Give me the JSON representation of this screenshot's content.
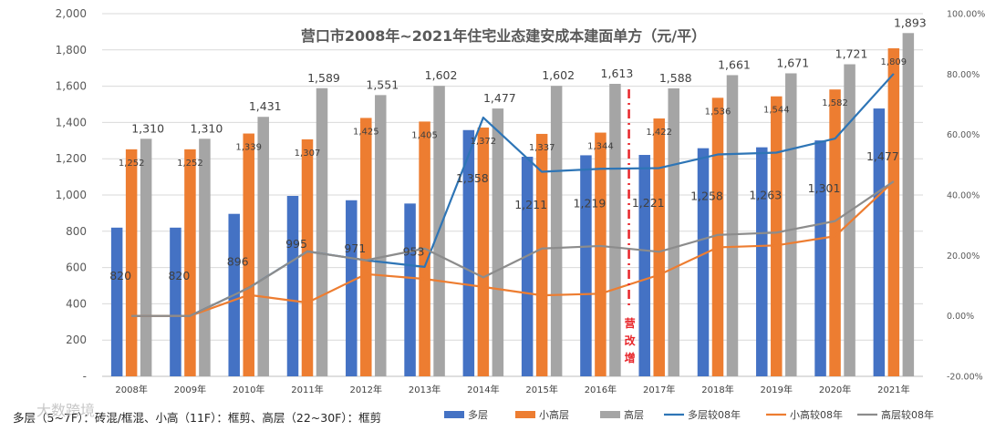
{
  "chart_data": {
    "type": "bar",
    "title": "营口市2008年~2021年住宅业态建安成本建面单方（元/平）",
    "categories": [
      "2008年",
      "2009年",
      "2010年",
      "2011年",
      "2012年",
      "2013年",
      "2014年",
      "2015年",
      "2016年",
      "2017年",
      "2018年",
      "2019年",
      "2020年",
      "2021年"
    ],
    "series": [
      {
        "name": "多层",
        "kind": "bar",
        "axis": "left",
        "color": "#4472C4",
        "values": [
          820,
          820,
          896,
          995,
          971,
          953,
          1358,
          1211,
          1219,
          1221,
          1258,
          1263,
          1301,
          1477
        ]
      },
      {
        "name": "小高层",
        "kind": "bar",
        "axis": "left",
        "color": "#ED7D31",
        "values": [
          1252,
          1252,
          1339,
          1307,
          1425,
          1405,
          1372,
          1337,
          1344,
          1422,
          1536,
          1544,
          1582,
          1809
        ]
      },
      {
        "name": "高层",
        "kind": "bar",
        "axis": "left",
        "color": "#A5A5A5",
        "values": [
          1310,
          1310,
          1431,
          1589,
          1551,
          1602,
          1477,
          1602,
          1613,
          1588,
          1661,
          1671,
          1721,
          1893
        ]
      },
      {
        "name": "多层较08年",
        "kind": "line",
        "axis": "right",
        "color": "#2E75B6",
        "values": [
          0,
          0,
          9.27,
          21.34,
          18.41,
          16.22,
          65.61,
          47.68,
          48.66,
          48.9,
          53.41,
          54.02,
          58.66,
          80.12
        ]
      },
      {
        "name": "小高较08年",
        "kind": "line",
        "axis": "right",
        "color": "#ED7D31",
        "values": [
          0,
          0,
          6.95,
          4.39,
          13.82,
          12.22,
          9.58,
          6.79,
          7.35,
          13.58,
          22.68,
          23.32,
          26.36,
          44.49
        ]
      },
      {
        "name": "高层较08年",
        "kind": "line",
        "axis": "right",
        "color": "#8C8C8C",
        "values": [
          0,
          0,
          9.24,
          21.3,
          18.4,
          22.29,
          12.75,
          22.29,
          23.13,
          21.22,
          26.79,
          27.56,
          31.37,
          44.5
        ]
      }
    ],
    "ylim": [
      0,
      2000
    ],
    "yticks": [
      "-",
      "200",
      "400",
      "600",
      "800",
      "1,000",
      "1,200",
      "1,400",
      "1,600",
      "1,800",
      "2,000"
    ],
    "y2lim": [
      -20,
      100
    ],
    "y2ticks": [
      "-20.00%",
      "0.00%",
      "20.00%",
      "40.00%",
      "60.00%",
      "80.00%",
      "100.00%"
    ],
    "bar_labels": {
      "多层": [
        "820",
        "820",
        "896",
        "995",
        "971",
        "953",
        "1,358",
        "1,211",
        "1,219",
        "1,221",
        "1,258",
        "1,263",
        "1,301",
        "1,477"
      ],
      "小高层": [
        "1,252",
        "1,252",
        "1,339",
        "1,307",
        "1,425",
        "1,405",
        "1,372",
        "1,337",
        "1,344",
        "1,422",
        "1,536",
        "1,544",
        "1,582",
        "1,809"
      ],
      "高层": [
        "1,310",
        "1,310",
        "1,431",
        "1,589",
        "1,551",
        "1,602",
        "1,477",
        "1,602",
        "1,613",
        "1,588",
        "1,661",
        "1,671",
        "1,721",
        "1,893"
      ]
    },
    "grid": true,
    "legend_position": "bottom",
    "annotation": {
      "text": [
        "营",
        "改",
        "增"
      ],
      "color": "#E8262B",
      "between_categories": [
        "2016年",
        "2017年"
      ]
    },
    "footnote": "多层（5~7F）：砖混/框混、小高（11F）：框剪、高层（22~30F）：框剪",
    "watermark": "大数跨境"
  }
}
